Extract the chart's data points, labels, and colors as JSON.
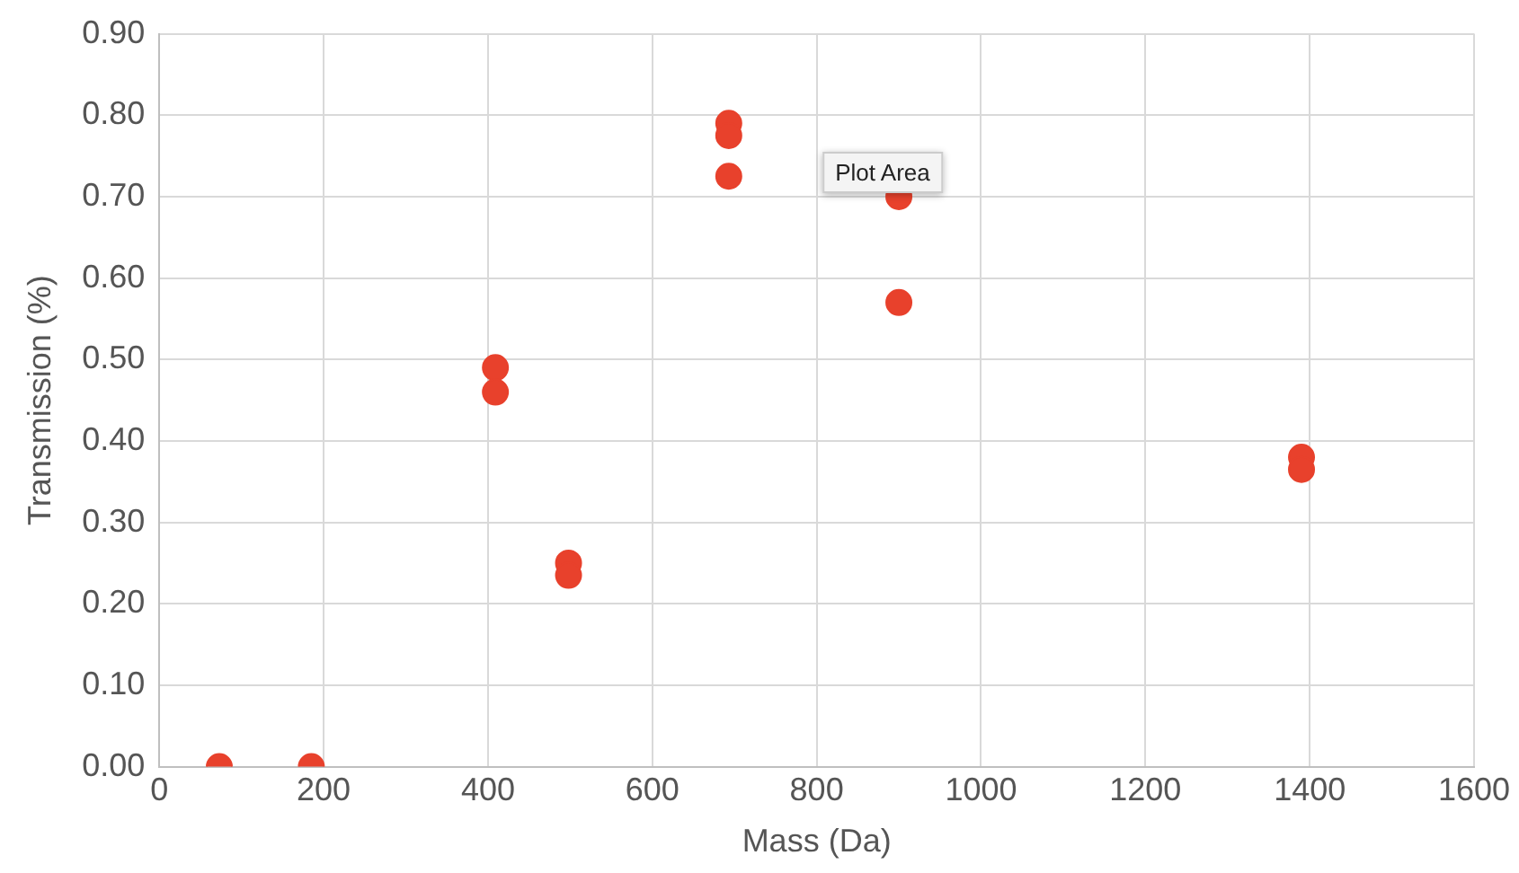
{
  "chart_data": {
    "type": "scatter",
    "xlabel": "Mass (Da)",
    "ylabel": "Transmission (%)",
    "series": [
      {
        "color": "#e8412c",
        "x": [
          73,
          185,
          409,
          409,
          498,
          498,
          693,
          693,
          693,
          900,
          900,
          1390,
          1390
        ],
        "values": [
          0.0,
          0.0,
          0.49,
          0.46,
          0.25,
          0.235,
          0.79,
          0.775,
          0.725,
          0.7,
          0.57,
          0.38,
          0.365
        ]
      }
    ],
    "xlim": [
      0,
      1600
    ],
    "xticks": [
      0,
      200,
      400,
      600,
      800,
      1000,
      1200,
      1400,
      1600
    ],
    "ylim": [
      0,
      0.9
    ],
    "yticks": [
      {
        "value": 0,
        "label": "0.00"
      },
      {
        "value": 0.1,
        "label": "0.10"
      },
      {
        "value": 0.2,
        "label": "0.20"
      },
      {
        "value": 0.3,
        "label": "0.30"
      },
      {
        "value": 0.4,
        "label": "0.40"
      },
      {
        "value": 0.5,
        "label": "0.50"
      },
      {
        "value": 0.6,
        "label": "0.60"
      },
      {
        "value": 0.7,
        "label": "0.70"
      },
      {
        "value": 0.8,
        "label": "0.80"
      },
      {
        "value": 0.9,
        "label": "0.90"
      }
    ],
    "grid": true,
    "marker": "circle",
    "legend": false,
    "annotations": [
      "Plot Area"
    ]
  }
}
